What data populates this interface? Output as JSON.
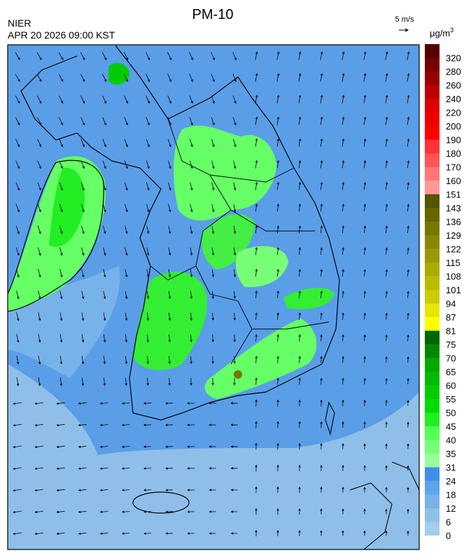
{
  "header": {
    "title": "PM-10",
    "agency": "NIER",
    "datetime": "APR 20 2026 09:00 KST",
    "wind_scale": "5 m/s"
  },
  "colorbar": {
    "unit": "μg/m",
    "unit_superscript": "3",
    "levels": [
      0,
      6,
      12,
      18,
      24,
      31,
      35,
      40,
      45,
      50,
      55,
      60,
      65,
      70,
      75,
      81,
      87,
      94,
      101,
      108,
      115,
      122,
      129,
      136,
      143,
      151,
      160,
      170,
      180,
      190,
      200,
      220,
      240,
      260,
      280,
      320
    ],
    "colors": [
      "#a6cdea",
      "#8fc0ea",
      "#78b2ea",
      "#5ea3ec",
      "#3f8fea",
      "#99ff99",
      "#77ff77",
      "#55ff55",
      "#22ee22",
      "#00dd00",
      "#00cc00",
      "#00bb00",
      "#00aa00",
      "#008800",
      "#006600",
      "#ffff00",
      "#e6e600",
      "#cccc00",
      "#bbbb00",
      "#aaaa00",
      "#999900",
      "#888800",
      "#777700",
      "#666600",
      "#555500",
      "#ff9999",
      "#ff7777",
      "#ff5555",
      "#ff3333",
      "#ff0000",
      "#ee0000",
      "#dd0000",
      "#bb0000",
      "#990000",
      "#770000",
      "#550000"
    ]
  }
}
